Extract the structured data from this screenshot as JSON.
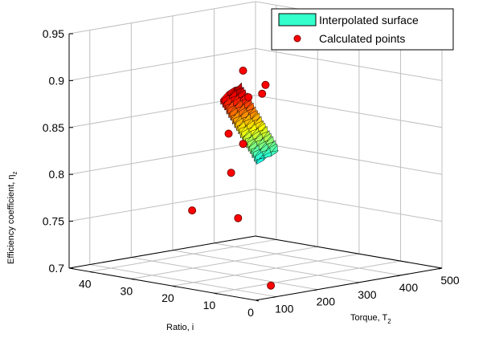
{
  "chart_data": {
    "type": "surface3d",
    "title": "",
    "xlabel": "Ratio, i",
    "ylabel": "Torque, T",
    "ylabel_sub": "2",
    "zlabel": "Efficiency coefficient, η",
    "zlabel_sub": "z",
    "xlim": [
      0,
      45
    ],
    "ylim": [
      50,
      500
    ],
    "zlim": [
      0.7,
      0.95
    ],
    "x_ticks": [
      "0",
      "10",
      "20",
      "30",
      "40"
    ],
    "y_ticks": [
      "100",
      "200",
      "300",
      "400",
      "500"
    ],
    "z_ticks": [
      "0.7",
      "0.75",
      "0.8",
      "0.85",
      "0.9",
      "0.95"
    ],
    "grid": true,
    "legend_position": "top-right",
    "series": [
      {
        "name": "Interpolated surface",
        "kind": "surface",
        "colormap": "jet",
        "ratio_range": [
          5,
          40
        ],
        "torque_range": [
          60,
          470
        ],
        "z_model": {
          "base": 0.942,
          "ratio_coef": -0.00378,
          "torque_coef": -5.67e-06
        }
      },
      {
        "name": "Calculated points",
        "kind": "scatter",
        "color": "#ff0000",
        "points": [
          {
            "x": 8,
            "y": 100,
            "z": 0.935
          },
          {
            "x": 5.8,
            "y": 132,
            "z": 0.919
          },
          {
            "x": 8.6,
            "y": 152,
            "z": 0.906
          },
          {
            "x": 11.7,
            "y": 150,
            "z": 0.9
          },
          {
            "x": 15.5,
            "y": 140,
            "z": 0.859
          },
          {
            "x": 17.1,
            "y": 191,
            "z": 0.843
          },
          {
            "x": 25.9,
            "y": 250,
            "z": 0.801
          },
          {
            "x": 38.4,
            "y": 281,
            "z": 0.749
          },
          {
            "x": 36.0,
            "y": 368,
            "z": 0.736
          },
          {
            "x": 40.0,
            "y": 487,
            "z": 0.652
          }
        ]
      }
    ]
  },
  "colors": {
    "legend_patch": "#33ffcc",
    "marker": "#ff0000",
    "grid": "#bfbfbf"
  }
}
